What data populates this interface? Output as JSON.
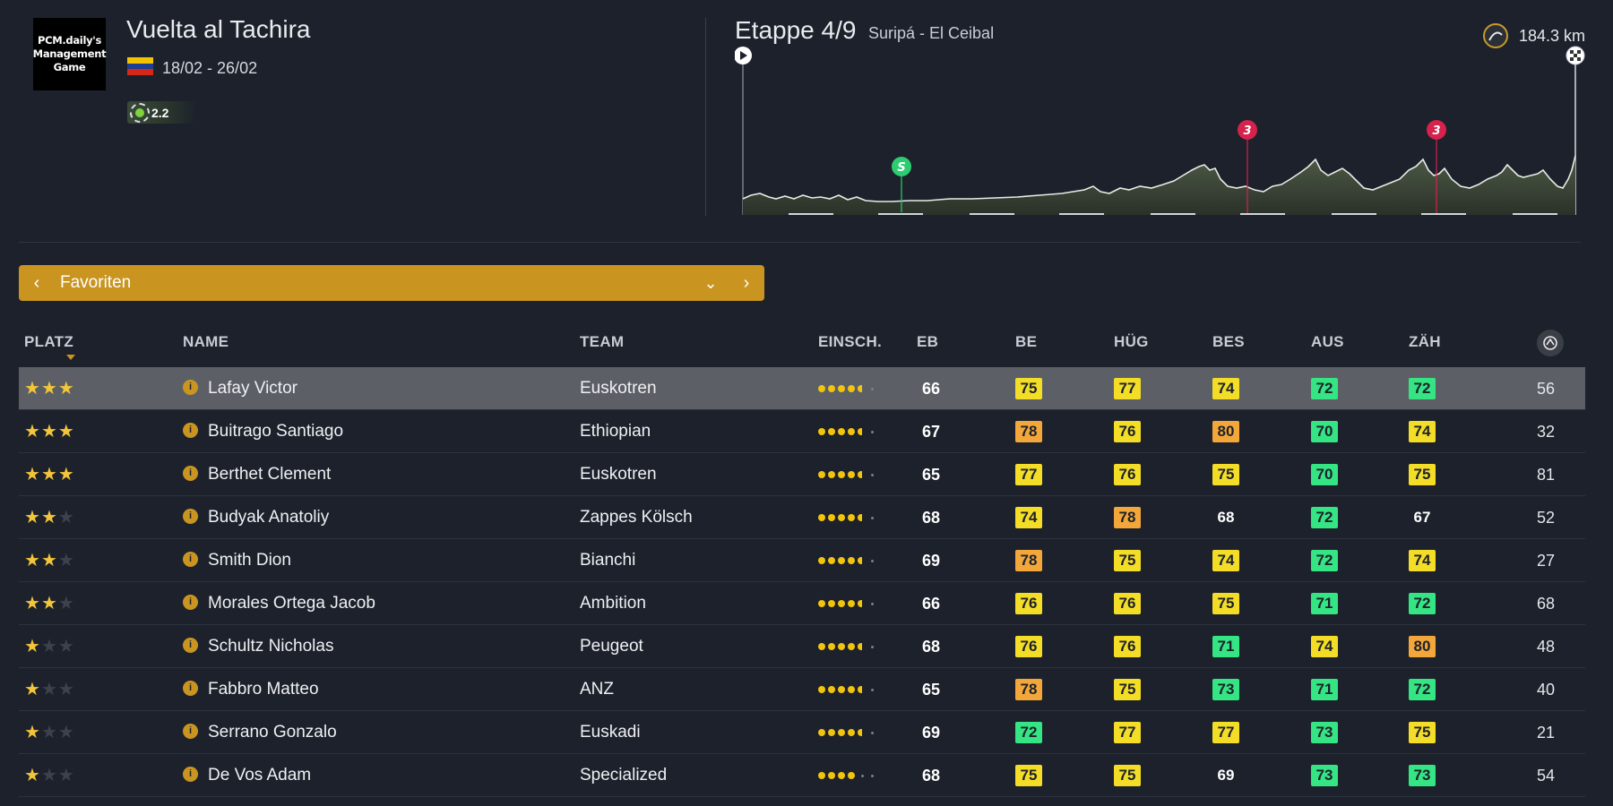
{
  "header": {
    "logo_text": "PCM.daily's Management Game",
    "logo_lines": [
      "PCM.daily's",
      "Management",
      "Game"
    ],
    "race_name": "Vuelta al Tachira",
    "dates": "18/02 - 26/02",
    "flag": "venezuela-flag",
    "category": "2.2",
    "colors": {
      "flag": [
        "#f4c300",
        "#1c3f95",
        "#d62718"
      ]
    }
  },
  "stage": {
    "title": "Etappe 4/9",
    "route": "Suripá - El Ceibal",
    "distance": "184.3 km",
    "markers": [
      {
        "type": "sprint",
        "label": "S",
        "color": "#2ecc71"
      },
      {
        "type": "climb",
        "label": "3",
        "color": "#d6224d"
      },
      {
        "type": "climb",
        "label": "3",
        "color": "#d6224d"
      }
    ]
  },
  "filter": {
    "label": "Favoriten"
  },
  "table": {
    "columns": [
      "PLATZ",
      "NAME",
      "TEAM",
      "EINSCH.",
      "EB",
      "BE",
      "HÜG",
      "BES",
      "AUS",
      "ZÄH"
    ],
    "stat_colors": {
      "orange": "#f3a73a",
      "yellow": "#f4dd27",
      "green": "#35e483"
    },
    "rows": [
      {
        "stars": 3,
        "name": "Lafay Victor",
        "team": "Euskotren",
        "form": [
          2,
          2,
          2,
          2,
          1,
          0
        ],
        "eb": "66",
        "stats": [
          [
            "75",
            "yellow"
          ],
          [
            "77",
            "yellow"
          ],
          [
            "74",
            "yellow"
          ],
          [
            "72",
            "green"
          ],
          [
            "72",
            "green"
          ]
        ],
        "last": "56",
        "selected": true
      },
      {
        "stars": 3,
        "name": "Buitrago Santiago",
        "team": "Ethiopian",
        "form": [
          2,
          2,
          2,
          2,
          1,
          0
        ],
        "eb": "67",
        "stats": [
          [
            "78",
            "orange"
          ],
          [
            "76",
            "yellow"
          ],
          [
            "80",
            "orange"
          ],
          [
            "70",
            "green"
          ],
          [
            "74",
            "yellow"
          ]
        ],
        "last": "32"
      },
      {
        "stars": 3,
        "name": "Berthet Clement",
        "team": "Euskotren",
        "form": [
          2,
          2,
          2,
          2,
          1,
          0
        ],
        "eb": "65",
        "stats": [
          [
            "77",
            "yellow"
          ],
          [
            "76",
            "yellow"
          ],
          [
            "75",
            "yellow"
          ],
          [
            "70",
            "green"
          ],
          [
            "75",
            "yellow"
          ]
        ],
        "last": "81"
      },
      {
        "stars": 2,
        "name": "Budyak Anatoliy",
        "team": "Zappes Kölsch",
        "form": [
          2,
          2,
          2,
          2,
          1,
          0
        ],
        "eb": "68",
        "stats": [
          [
            "74",
            "yellow"
          ],
          [
            "78",
            "orange"
          ],
          [
            "68",
            "plain"
          ],
          [
            "72",
            "green"
          ],
          [
            "67",
            "plain"
          ]
        ],
        "last": "52"
      },
      {
        "stars": 2,
        "name": "Smith Dion",
        "team": "Bianchi",
        "form": [
          2,
          2,
          2,
          2,
          1,
          0
        ],
        "eb": "69",
        "stats": [
          [
            "78",
            "orange"
          ],
          [
            "75",
            "yellow"
          ],
          [
            "74",
            "yellow"
          ],
          [
            "72",
            "green"
          ],
          [
            "74",
            "yellow"
          ]
        ],
        "last": "27"
      },
      {
        "stars": 2,
        "name": "Morales Ortega Jacob",
        "team": "Ambition",
        "form": [
          2,
          2,
          2,
          2,
          1,
          0
        ],
        "eb": "66",
        "stats": [
          [
            "76",
            "yellow"
          ],
          [
            "76",
            "yellow"
          ],
          [
            "75",
            "yellow"
          ],
          [
            "71",
            "green"
          ],
          [
            "72",
            "green"
          ]
        ],
        "last": "68"
      },
      {
        "stars": 1,
        "name": "Schultz Nicholas",
        "team": "Peugeot",
        "form": [
          2,
          2,
          2,
          2,
          1,
          0
        ],
        "eb": "68",
        "stats": [
          [
            "76",
            "yellow"
          ],
          [
            "76",
            "yellow"
          ],
          [
            "71",
            "green"
          ],
          [
            "74",
            "yellow"
          ],
          [
            "80",
            "orange"
          ]
        ],
        "last": "48"
      },
      {
        "stars": 1,
        "name": "Fabbro Matteo",
        "team": "ANZ",
        "form": [
          2,
          2,
          2,
          2,
          1,
          0
        ],
        "eb": "65",
        "stats": [
          [
            "78",
            "orange"
          ],
          [
            "75",
            "yellow"
          ],
          [
            "73",
            "green"
          ],
          [
            "71",
            "green"
          ],
          [
            "72",
            "green"
          ]
        ],
        "last": "40"
      },
      {
        "stars": 1,
        "name": "Serrano Gonzalo",
        "team": "Euskadi",
        "form": [
          2,
          2,
          2,
          2,
          1,
          0
        ],
        "eb": "69",
        "stats": [
          [
            "72",
            "green"
          ],
          [
            "77",
            "yellow"
          ],
          [
            "77",
            "yellow"
          ],
          [
            "73",
            "green"
          ],
          [
            "75",
            "yellow"
          ]
        ],
        "last": "21"
      },
      {
        "stars": 1,
        "name": "De Vos Adam",
        "team": "Specialized",
        "form": [
          2,
          2,
          2,
          2,
          0,
          0
        ],
        "eb": "68",
        "stats": [
          [
            "75",
            "yellow"
          ],
          [
            "75",
            "yellow"
          ],
          [
            "69",
            "plain"
          ],
          [
            "73",
            "green"
          ],
          [
            "73",
            "green"
          ]
        ],
        "last": "54"
      }
    ]
  }
}
